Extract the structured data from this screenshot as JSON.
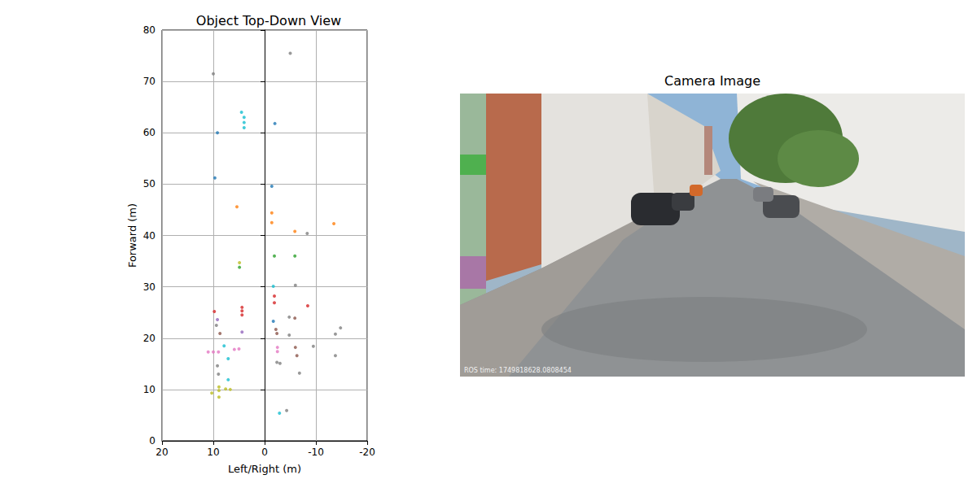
{
  "chart_data": {
    "type": "scatter",
    "title": "Object Top-Down View",
    "x_label": "Left/Right (m)",
    "y_label": "Forward (m)",
    "xlim": [
      20,
      -20
    ],
    "xticks": [
      20,
      10,
      0,
      -10,
      -20
    ],
    "ylim": [
      0,
      80
    ],
    "yticks": [
      0,
      10,
      20,
      30,
      40,
      50,
      60,
      70,
      80
    ],
    "grid": true,
    "x": [
      4.0,
      4.0,
      4.0,
      4.5,
      -2.0,
      -5.0,
      10.0,
      9.2,
      9.7,
      -1.4,
      5.4,
      -1.4,
      -1.4,
      -5.9,
      -13.5,
      -8.3,
      4.9,
      4.9,
      -1.9,
      -5.9,
      -1.7,
      -1.9,
      -1.9,
      -6.0,
      -8.4,
      9.8,
      9.2,
      4.4,
      4.4,
      4.4,
      -1.7,
      -4.8,
      -5.9,
      8.7,
      9.4,
      4.4,
      -2.4,
      -2.2,
      -4.8,
      -13.8,
      -14.8,
      -2.5,
      -2.5,
      -6.0,
      -6.3,
      -9.5,
      11.0,
      10.0,
      9.0,
      5.0,
      5.9,
      7.9,
      7.1,
      -3.0,
      -2.4,
      -6.8,
      9.0,
      9.2,
      -13.8,
      7.1,
      8.9,
      8.9,
      8.9,
      6.7,
      7.6,
      10.3,
      -2.9,
      -4.3
    ],
    "y": [
      61.0,
      62.0,
      63.0,
      64.0,
      61.8,
      75.5,
      71.5,
      60.0,
      51.2,
      49.6,
      45.6,
      44.4,
      42.5,
      40.8,
      42.3,
      40.4,
      33.8,
      34.7,
      36.0,
      36.0,
      30.1,
      28.2,
      26.9,
      30.3,
      26.3,
      25.2,
      23.6,
      24.5,
      25.3,
      26.0,
      23.3,
      24.1,
      23.9,
      20.9,
      22.5,
      21.2,
      20.9,
      21.7,
      20.6,
      20.8,
      22.0,
      18.2,
      17.4,
      18.2,
      16.6,
      18.4,
      17.3,
      17.3,
      17.3,
      17.9,
      17.8,
      18.5,
      16.0,
      15.1,
      15.3,
      13.2,
      13.0,
      14.6,
      16.6,
      11.9,
      9.8,
      8.5,
      10.5,
      10.0,
      10.1,
      9.3,
      5.4,
      5.9
    ],
    "colors": [
      "#17becf",
      "#17becf",
      "#17becf",
      "#17becf",
      "#1f77b4",
      "#7f7f7f",
      "#7f7f7f",
      "#1f77b4",
      "#1f77b4",
      "#1f77b4",
      "#ff7f0e",
      "#ff7f0e",
      "#ff7f0e",
      "#ff7f0e",
      "#ff7f0e",
      "#7f7f7f",
      "#2ca02c",
      "#bcbd22",
      "#2ca02c",
      "#2ca02c",
      "#17becf",
      "#d62728",
      "#d62728",
      "#7f7f7f",
      "#d62728",
      "#d62728",
      "#9467bd",
      "#d62728",
      "#d62728",
      "#d62728",
      "#1f77b4",
      "#7f7f7f",
      "#8c564b",
      "#8c564b",
      "#7f7f7f",
      "#9467bd",
      "#8c564b",
      "#8c564b",
      "#7f7f7f",
      "#7f7f7f",
      "#7f7f7f",
      "#e377c2",
      "#e377c2",
      "#8c564b",
      "#8c564b",
      "#7f7f7f",
      "#e377c2",
      "#e377c2",
      "#e377c2",
      "#e377c2",
      "#e377c2",
      "#17becf",
      "#17becf",
      "#7f7f7f",
      "#7f7f7f",
      "#7f7f7f",
      "#7f7f7f",
      "#7f7f7f",
      "#7f7f7f",
      "#17becf",
      "#bcbd22",
      "#bcbd22",
      "#bcbd22",
      "#bcbd22",
      "#bcbd22",
      "#bcbd22",
      "#17becf",
      "#7f7f7f"
    ]
  },
  "camera_image": {
    "title": "Camera Image",
    "overlay_text": "ROS time: 1749818628.0808454"
  }
}
